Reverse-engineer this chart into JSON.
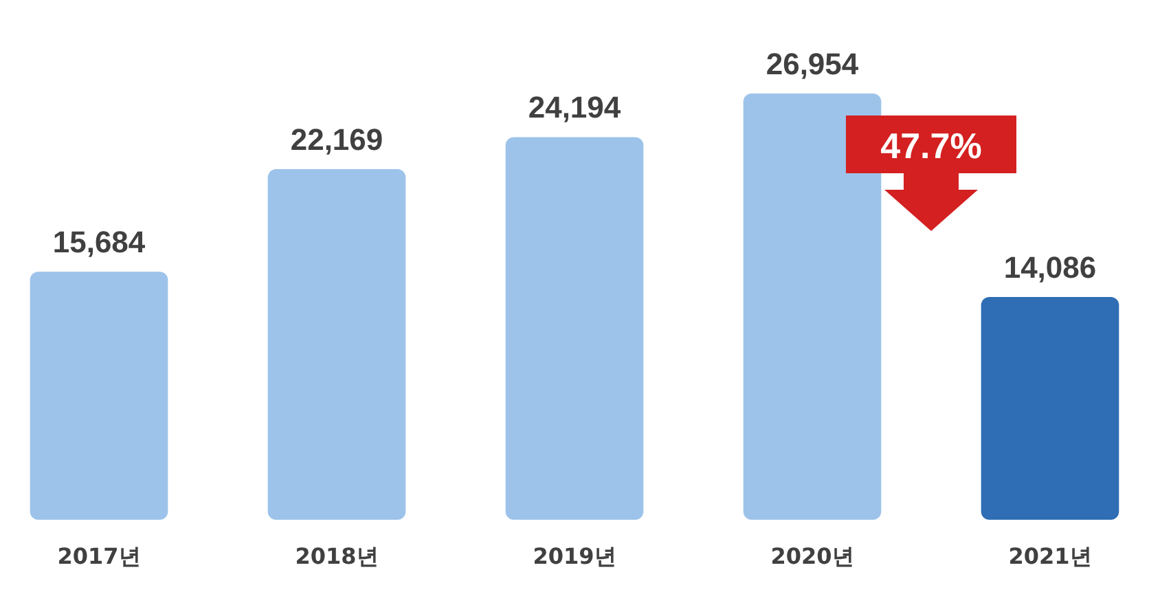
{
  "chart_data": {
    "type": "bar",
    "categories": [
      "2017년",
      "2018년",
      "2019년",
      "2020년",
      "2021년"
    ],
    "values": [
      15684,
      22169,
      24194,
      26954,
      14086
    ],
    "colors": [
      "#9dc3ea",
      "#9dc3ea",
      "#9dc3ea",
      "#9dc3ea",
      "#2f6db5"
    ],
    "value_labels": [
      "15,684",
      "22,169",
      "24,194",
      "26,954",
      "14,086"
    ],
    "annotations": [
      "47.7%"
    ]
  }
}
